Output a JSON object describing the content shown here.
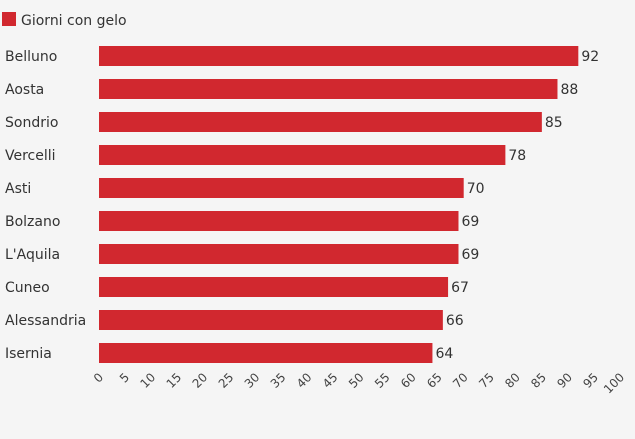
{
  "chart_data": {
    "type": "bar",
    "orientation": "horizontal",
    "legend": {
      "position": "top-left",
      "entries": [
        "Giorni con gelo"
      ]
    },
    "series": [
      {
        "name": "Giorni con gelo",
        "color": "#d1282f",
        "values": [
          92,
          88,
          85,
          78,
          70,
          69,
          69,
          67,
          66,
          64
        ]
      }
    ],
    "categories": [
      "Belluno",
      "Aosta",
      "Sondrio",
      "Vercelli",
      "Asti",
      "Bolzano",
      "L'Aquila",
      "Cuneo",
      "Alessandria",
      "Isernia"
    ],
    "xlim": [
      0,
      100
    ],
    "x_ticks": [
      "0",
      "5",
      "10",
      "15",
      "20",
      "25",
      "30",
      "35",
      "40",
      "45",
      "50",
      "55",
      "60",
      "65",
      "70",
      "75",
      "80",
      "85",
      "90",
      "95",
      "100"
    ],
    "grid": false,
    "data_labels": true
  }
}
